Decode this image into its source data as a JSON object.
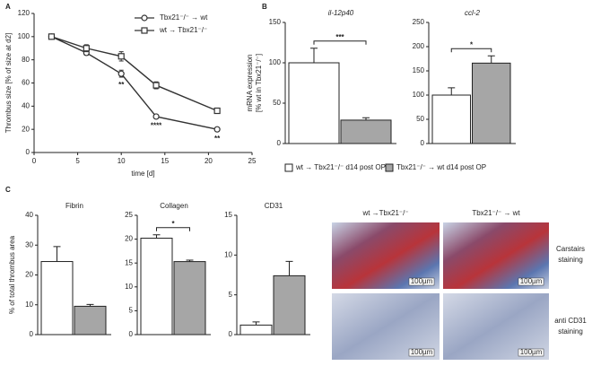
{
  "panel_labels": [
    "A",
    "B",
    "C"
  ],
  "group_legend": [
    {
      "name": "wt → Tbx21⁻/⁻ d14 post OP",
      "color": "#ffffff"
    },
    {
      "name": "Tbx21⁻/⁻ → wt d14 post OP",
      "color": "#a6a6a6"
    }
  ],
  "micrographs": {
    "columns": [
      "wt →Tbx21⁻/⁻",
      "Tbx21⁻/⁻ → wt"
    ],
    "rows": [
      [
        "Carstairs",
        "staining"
      ],
      [
        "anti CD31",
        "staining"
      ]
    ],
    "scale_bar": "100µm"
  },
  "chart_data": [
    {
      "type": "line",
      "x_label": "time [d]",
      "y_label": "Thrombus size [% of size at d2]",
      "x": [
        2,
        6,
        10,
        14,
        21
      ],
      "xlim": [
        0,
        25
      ],
      "xticks": [
        0,
        5,
        10,
        15,
        20,
        25
      ],
      "ylim": [
        0,
        120
      ],
      "yticks": [
        0,
        20,
        40,
        60,
        80,
        100,
        120
      ],
      "series": [
        {
          "name": "Tbx21⁻/⁻ → wt",
          "marker": "circle",
          "color": "#333333",
          "values": [
            100,
            86,
            68,
            31,
            20
          ],
          "errors": [
            1,
            2,
            3,
            1,
            1.5
          ],
          "significance": [
            null,
            null,
            "**",
            "****",
            "**"
          ]
        },
        {
          "name": "wt → Tbx21⁻/⁻",
          "marker": "square",
          "color": "#333333",
          "values": [
            100,
            90,
            83,
            58,
            36
          ],
          "errors": [
            1,
            3,
            4,
            3,
            2
          ]
        }
      ]
    },
    {
      "type": "bar",
      "title": "il-12p40",
      "y_label": [
        "mRNA expression",
        "[% wt in Tbx21⁻/⁻]"
      ],
      "categories": [
        null,
        null
      ],
      "values": [
        100,
        29
      ],
      "errors": [
        18,
        3
      ],
      "ylim": [
        0,
        150
      ],
      "yticks": [
        0,
        50,
        100,
        150
      ],
      "significance": "***"
    },
    {
      "type": "bar",
      "title": "ccl-2",
      "categories": [
        null,
        null
      ],
      "values": [
        100,
        166
      ],
      "errors": [
        15,
        15
      ],
      "ylim": [
        0,
        250
      ],
      "yticks": [
        0,
        50,
        100,
        150,
        200,
        250
      ],
      "significance": "*"
    },
    {
      "type": "bar",
      "title": "Fibrin",
      "y_label": [
        "% of total thrombus area"
      ],
      "categories": [
        null,
        null
      ],
      "values": [
        24.5,
        9.5
      ],
      "errors": [
        5,
        0.6
      ],
      "ylim": [
        0,
        40
      ],
      "yticks": [
        0,
        10,
        20,
        30,
        40
      ]
    },
    {
      "type": "bar",
      "title": "Collagen",
      "categories": [
        null,
        null
      ],
      "values": [
        20.2,
        15.3
      ],
      "errors": [
        0.7,
        0.3
      ],
      "ylim": [
        0,
        25
      ],
      "yticks": [
        0,
        5,
        10,
        15,
        20,
        25
      ],
      "significance": "*"
    },
    {
      "type": "bar",
      "title": "CD31",
      "categories": [
        null,
        null
      ],
      "values": [
        1.2,
        7.4
      ],
      "errors": [
        0.4,
        1.8
      ],
      "ylim": [
        0,
        15
      ],
      "yticks": [
        0,
        5,
        10,
        15
      ]
    }
  ]
}
